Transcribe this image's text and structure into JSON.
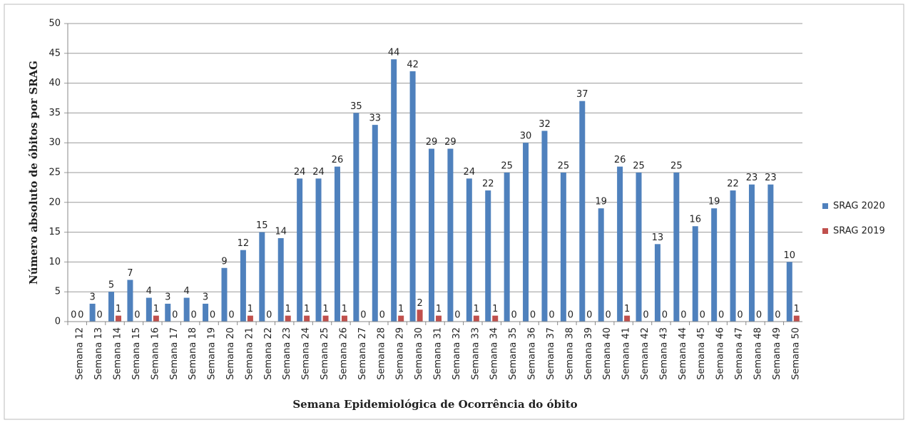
{
  "chart_data": {
    "type": "bar",
    "x_label": "Semana Epidemiológica de Ocorrência do óbito",
    "y_label": "Número absoluto de óbitos por SRAG",
    "categories": [
      "Semana 12",
      "Semana 13",
      "Semana 14",
      "Semana 15",
      "Semana 16",
      "Semana 17",
      "Semana 18",
      "Semana 19",
      "Semana 20",
      "Semana 21",
      "Semana 22",
      "Semana 23",
      "Semana 24",
      "Semana 25",
      "Semana 26",
      "Semana 27",
      "Semana 28",
      "Semana 29",
      "Semana 30",
      "Semana 31",
      "Semana 32",
      "Semana 33",
      "Semana 34",
      "Semana 35",
      "Semana 36",
      "Semana 37",
      "Semana 38",
      "Semana 39",
      "Semana 40",
      "Semana 41",
      "Semana 42",
      "Semana 43",
      "Semana 44",
      "Semana 45",
      "Semana 46",
      "Semana 47",
      "Semana 48",
      "Semana 49",
      "Semana 50"
    ],
    "series": [
      {
        "name": "SRAG 2020",
        "color": "#4f81bd",
        "values": [
          0,
          3,
          5,
          7,
          4,
          3,
          4,
          3,
          9,
          12,
          15,
          14,
          24,
          24,
          26,
          35,
          33,
          44,
          42,
          29,
          29,
          24,
          22,
          25,
          30,
          32,
          25,
          37,
          19,
          26,
          25,
          13,
          25,
          16,
          19,
          22,
          23,
          23,
          10
        ]
      },
      {
        "name": "SRAG 2019",
        "color": "#c0504d",
        "values": [
          0,
          0,
          1,
          0,
          1,
          0,
          0,
          0,
          0,
          1,
          0,
          1,
          1,
          1,
          1,
          0,
          0,
          1,
          2,
          1,
          0,
          1,
          1,
          0,
          0,
          0,
          0,
          0,
          0,
          1,
          0,
          0,
          0,
          0,
          0,
          0,
          0,
          0,
          1
        ]
      }
    ],
    "ylim": [
      0,
      50
    ],
    "yticks": [
      0,
      5,
      10,
      15,
      20,
      25,
      30,
      35,
      40,
      45,
      50
    ],
    "grid": true,
    "legend": "right"
  }
}
